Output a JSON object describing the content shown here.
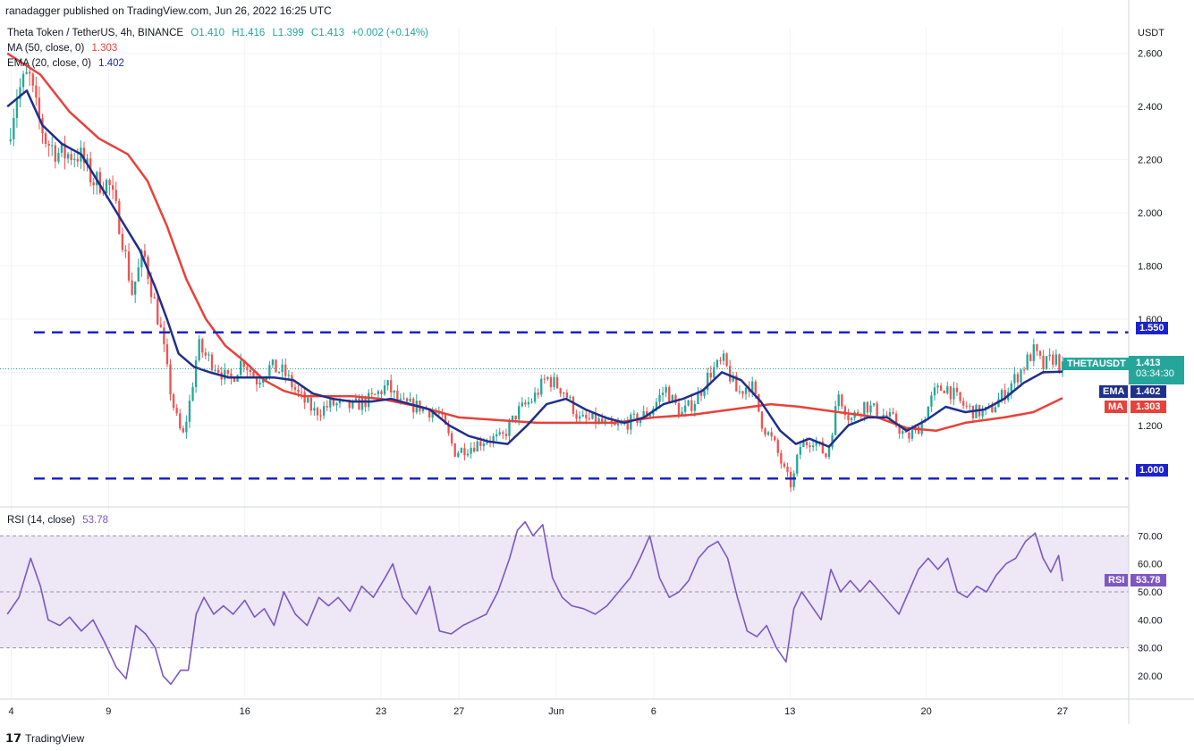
{
  "header": {
    "published": "ranadagger published on TradingView.com, Jun 26, 2022 16:25 UTC"
  },
  "symbol_line": {
    "title": "Theta Token / TetherUS, 4h, BINANCE",
    "open": "O1.410",
    "high": "H1.416",
    "low": "L1.399",
    "close": "C1.413",
    "change": "+0.002 (+0.14%)"
  },
  "ma_legend": {
    "label": "MA (50, close, 0)",
    "value": "1.303"
  },
  "ema_legend": {
    "label": "EMA (20, close, 0)",
    "value": "1.402"
  },
  "rsi_legend": {
    "label": "RSI (14, close)",
    "value": "53.78"
  },
  "price_axis": {
    "unit": "USDT"
  },
  "tags": {
    "resistance": "1.550",
    "support": "1.000",
    "symbol_name": "THETAUSDT",
    "price": "1.413",
    "countdown": "03:34:30",
    "ema_name": "EMA",
    "ema_value": "1.402",
    "ma_name": "MA",
    "ma_value": "1.303",
    "rsi_name": "RSI",
    "rsi_value": "53.78"
  },
  "footer": {
    "brand": "TradingView"
  },
  "colors": {
    "up": "#26a69a",
    "down": "#ef5350",
    "ema": "#1e2f8c",
    "ma": "#e8413a",
    "level": "#1b22d0",
    "rsi": "#7e57c2",
    "rsi_band": "#ede7f6",
    "price_tag": "#26a69a"
  },
  "chart_data": [
    {
      "type": "candlestick",
      "xlabel": "",
      "ylabel": "",
      "ylim": [
        0.9,
        2.7
      ],
      "y_ticks": [
        "1.200",
        "1.400",
        "1.600",
        "1.800",
        "2.000",
        "2.200",
        "2.400",
        "2.600"
      ],
      "x_ticks": [
        {
          "label": "4",
          "x": 0
        },
        {
          "label": "9",
          "x": 5
        },
        {
          "label": "16",
          "x": 12
        },
        {
          "label": "23",
          "x": 19
        },
        {
          "label": "27",
          "x": 23
        },
        {
          "label": "Jun",
          "x": 28
        },
        {
          "label": "6",
          "x": 33
        },
        {
          "label": "13",
          "x": 40
        },
        {
          "label": "20",
          "x": 47
        },
        {
          "label": "27",
          "x": 54
        }
      ],
      "xlim": [
        -0.3,
        57.4
      ],
      "close_path": [
        [
          -0.2,
          2.27
        ],
        [
          0.3,
          2.45
        ],
        [
          0.9,
          2.52
        ],
        [
          1.3,
          2.38
        ],
        [
          1.8,
          2.27
        ],
        [
          2.5,
          2.22
        ],
        [
          3.5,
          2.22
        ],
        [
          4.2,
          2.12
        ],
        [
          5.0,
          2.11
        ],
        [
          5.6,
          1.95
        ],
        [
          6.2,
          1.7
        ],
        [
          6.8,
          1.85
        ],
        [
          7.3,
          1.68
        ],
        [
          7.7,
          1.55
        ],
        [
          8.1,
          1.36
        ],
        [
          8.4,
          1.25
        ],
        [
          8.8,
          1.15
        ],
        [
          9.2,
          1.3
        ],
        [
          9.6,
          1.5
        ],
        [
          10.0,
          1.46
        ],
        [
          10.6,
          1.42
        ],
        [
          11.2,
          1.36
        ],
        [
          11.9,
          1.45
        ],
        [
          12.6,
          1.37
        ],
        [
          13.3,
          1.42
        ],
        [
          14.0,
          1.4
        ],
        [
          14.8,
          1.31
        ],
        [
          15.6,
          1.25
        ],
        [
          16.5,
          1.28
        ],
        [
          17.5,
          1.27
        ],
        [
          18.5,
          1.3
        ],
        [
          19.3,
          1.35
        ],
        [
          20.0,
          1.28
        ],
        [
          21.0,
          1.27
        ],
        [
          22.0,
          1.24
        ],
        [
          22.8,
          1.1
        ],
        [
          23.6,
          1.12
        ],
        [
          24.4,
          1.15
        ],
        [
          25.2,
          1.15
        ],
        [
          26.0,
          1.25
        ],
        [
          26.8,
          1.3
        ],
        [
          27.5,
          1.38
        ],
        [
          28.4,
          1.33
        ],
        [
          29.2,
          1.22
        ],
        [
          30.0,
          1.22
        ],
        [
          31.0,
          1.19
        ],
        [
          32.0,
          1.22
        ],
        [
          32.8,
          1.25
        ],
        [
          33.6,
          1.34
        ],
        [
          34.4,
          1.24
        ],
        [
          35.2,
          1.3
        ],
        [
          35.9,
          1.4
        ],
        [
          36.6,
          1.44
        ],
        [
          37.3,
          1.32
        ],
        [
          38.0,
          1.36
        ],
        [
          38.6,
          1.2
        ],
        [
          39.2,
          1.13
        ],
        [
          39.7,
          1.03
        ],
        [
          40.1,
          0.97
        ],
        [
          40.5,
          1.12
        ],
        [
          41.2,
          1.15
        ],
        [
          41.9,
          1.08
        ],
        [
          42.5,
          1.32
        ],
        [
          43.1,
          1.22
        ],
        [
          43.8,
          1.28
        ],
        [
          44.5,
          1.25
        ],
        [
          45.3,
          1.22
        ],
        [
          46.0,
          1.15
        ],
        [
          46.7,
          1.2
        ],
        [
          47.4,
          1.32
        ],
        [
          48.0,
          1.35
        ],
        [
          48.8,
          1.28
        ],
        [
          49.5,
          1.25
        ],
        [
          50.2,
          1.25
        ],
        [
          51.0,
          1.32
        ],
        [
          51.8,
          1.4
        ],
        [
          52.5,
          1.48
        ],
        [
          53.0,
          1.42
        ],
        [
          53.6,
          1.46
        ],
        [
          54.0,
          1.413
        ]
      ],
      "ema_path": [
        [
          -0.2,
          2.4
        ],
        [
          0.8,
          2.46
        ],
        [
          1.6,
          2.33
        ],
        [
          2.6,
          2.26
        ],
        [
          3.6,
          2.22
        ],
        [
          4.6,
          2.1
        ],
        [
          5.6,
          1.98
        ],
        [
          6.6,
          1.86
        ],
        [
          7.4,
          1.72
        ],
        [
          8.0,
          1.6
        ],
        [
          8.6,
          1.47
        ],
        [
          9.4,
          1.42
        ],
        [
          10.2,
          1.4
        ],
        [
          11.2,
          1.38
        ],
        [
          12.5,
          1.38
        ],
        [
          13.5,
          1.38
        ],
        [
          14.5,
          1.37
        ],
        [
          15.5,
          1.32
        ],
        [
          16.5,
          1.3
        ],
        [
          17.5,
          1.29
        ],
        [
          18.5,
          1.29
        ],
        [
          19.5,
          1.3
        ],
        [
          20.5,
          1.28
        ],
        [
          21.5,
          1.26
        ],
        [
          22.5,
          1.2
        ],
        [
          23.5,
          1.16
        ],
        [
          24.5,
          1.14
        ],
        [
          25.5,
          1.13
        ],
        [
          26.5,
          1.2
        ],
        [
          27.5,
          1.28
        ],
        [
          28.5,
          1.3
        ],
        [
          29.5,
          1.26
        ],
        [
          30.5,
          1.23
        ],
        [
          31.5,
          1.21
        ],
        [
          32.5,
          1.23
        ],
        [
          33.5,
          1.28
        ],
        [
          34.5,
          1.3
        ],
        [
          35.5,
          1.33
        ],
        [
          36.5,
          1.4
        ],
        [
          37.5,
          1.37
        ],
        [
          38.5,
          1.29
        ],
        [
          39.5,
          1.18
        ],
        [
          40.3,
          1.13
        ],
        [
          41.0,
          1.15
        ],
        [
          42.0,
          1.12
        ],
        [
          43.0,
          1.2
        ],
        [
          44.0,
          1.23
        ],
        [
          45.0,
          1.23
        ],
        [
          46.0,
          1.18
        ],
        [
          47.0,
          1.22
        ],
        [
          48.0,
          1.27
        ],
        [
          49.0,
          1.25
        ],
        [
          50.0,
          1.26
        ],
        [
          51.0,
          1.3
        ],
        [
          52.0,
          1.36
        ],
        [
          53.0,
          1.4
        ],
        [
          54.0,
          1.402
        ]
      ],
      "ma_path": [
        [
          -0.2,
          2.6
        ],
        [
          1.5,
          2.52
        ],
        [
          3.0,
          2.38
        ],
        [
          4.5,
          2.28
        ],
        [
          6.0,
          2.22
        ],
        [
          7.0,
          2.12
        ],
        [
          8.0,
          1.95
        ],
        [
          9.0,
          1.75
        ],
        [
          10.0,
          1.6
        ],
        [
          11.0,
          1.5
        ],
        [
          12.0,
          1.44
        ],
        [
          13.0,
          1.37
        ],
        [
          14.0,
          1.33
        ],
        [
          15.0,
          1.31
        ],
        [
          16.0,
          1.31
        ],
        [
          17.5,
          1.31
        ],
        [
          19.0,
          1.3
        ],
        [
          21.0,
          1.27
        ],
        [
          23.0,
          1.23
        ],
        [
          25.0,
          1.22
        ],
        [
          27.0,
          1.21
        ],
        [
          29.0,
          1.21
        ],
        [
          31.0,
          1.21
        ],
        [
          33.0,
          1.23
        ],
        [
          35.0,
          1.24
        ],
        [
          37.0,
          1.26
        ],
        [
          39.0,
          1.28
        ],
        [
          40.5,
          1.27
        ],
        [
          42.5,
          1.25
        ],
        [
          44.5,
          1.23
        ],
        [
          46.0,
          1.19
        ],
        [
          47.5,
          1.18
        ],
        [
          49.0,
          1.21
        ],
        [
          51.0,
          1.23
        ],
        [
          52.5,
          1.25
        ],
        [
          54.0,
          1.303
        ]
      ],
      "levels": [
        {
          "value": 1.55,
          "tag": "resistance"
        },
        {
          "value": 1.0,
          "tag": "support"
        }
      ]
    },
    {
      "type": "line",
      "title": "RSI (14, close)",
      "ylim": [
        12,
        80
      ],
      "y_ticks": [
        "20.00",
        "30.00",
        "40.00",
        "50.00",
        "60.00",
        "70.00"
      ],
      "band": [
        30,
        70
      ],
      "midline": 50,
      "series": [
        {
          "name": "RSI",
          "points": [
            [
              -0.2,
              42
            ],
            [
              0.4,
              48
            ],
            [
              1.0,
              62
            ],
            [
              1.5,
              52
            ],
            [
              1.9,
              40
            ],
            [
              2.5,
              38
            ],
            [
              3.0,
              41
            ],
            [
              3.6,
              36
            ],
            [
              4.2,
              40
            ],
            [
              4.8,
              32
            ],
            [
              5.4,
              23
            ],
            [
              5.9,
              19
            ],
            [
              6.4,
              38
            ],
            [
              6.9,
              35
            ],
            [
              7.4,
              30
            ],
            [
              7.8,
              20
            ],
            [
              8.2,
              17
            ],
            [
              8.7,
              22
            ],
            [
              9.1,
              22
            ],
            [
              9.5,
              42
            ],
            [
              9.9,
              48
            ],
            [
              10.4,
              42
            ],
            [
              10.9,
              45
            ],
            [
              11.4,
              42
            ],
            [
              12.0,
              47
            ],
            [
              12.5,
              41
            ],
            [
              13.0,
              44
            ],
            [
              13.5,
              38
            ],
            [
              14.0,
              50
            ],
            [
              14.6,
              42
            ],
            [
              15.2,
              38
            ],
            [
              15.8,
              48
            ],
            [
              16.3,
              45
            ],
            [
              16.8,
              48
            ],
            [
              17.4,
              43
            ],
            [
              18.0,
              52
            ],
            [
              18.6,
              48
            ],
            [
              19.2,
              55
            ],
            [
              19.6,
              60
            ],
            [
              20.1,
              48
            ],
            [
              20.8,
              42
            ],
            [
              21.5,
              52
            ],
            [
              22.0,
              36
            ],
            [
              22.6,
              35
            ],
            [
              23.2,
              38
            ],
            [
              23.8,
              40
            ],
            [
              24.4,
              42
            ],
            [
              25.0,
              50
            ],
            [
              25.6,
              62
            ],
            [
              26.0,
              72
            ],
            [
              26.4,
              75
            ],
            [
              26.8,
              70
            ],
            [
              27.3,
              74
            ],
            [
              27.8,
              55
            ],
            [
              28.3,
              48
            ],
            [
              28.8,
              45
            ],
            [
              29.4,
              44
            ],
            [
              30.0,
              42
            ],
            [
              30.6,
              45
            ],
            [
              31.2,
              50
            ],
            [
              31.8,
              55
            ],
            [
              32.3,
              62
            ],
            [
              32.8,
              70
            ],
            [
              33.3,
              55
            ],
            [
              33.8,
              48
            ],
            [
              34.3,
              50
            ],
            [
              34.8,
              54
            ],
            [
              35.3,
              62
            ],
            [
              35.8,
              66
            ],
            [
              36.3,
              68
            ],
            [
              36.8,
              62
            ],
            [
              37.3,
              48
            ],
            [
              37.8,
              36
            ],
            [
              38.3,
              34
            ],
            [
              38.8,
              38
            ],
            [
              39.3,
              30
            ],
            [
              39.8,
              25
            ],
            [
              40.2,
              44
            ],
            [
              40.6,
              50
            ],
            [
              41.1,
              45
            ],
            [
              41.6,
              40
            ],
            [
              42.1,
              58
            ],
            [
              42.6,
              50
            ],
            [
              43.1,
              54
            ],
            [
              43.6,
              50
            ],
            [
              44.1,
              54
            ],
            [
              44.6,
              50
            ],
            [
              45.1,
              46
            ],
            [
              45.6,
              42
            ],
            [
              46.1,
              50
            ],
            [
              46.6,
              58
            ],
            [
              47.1,
              62
            ],
            [
              47.6,
              58
            ],
            [
              48.1,
              62
            ],
            [
              48.6,
              50
            ],
            [
              49.1,
              48
            ],
            [
              49.6,
              52
            ],
            [
              50.1,
              50
            ],
            [
              50.6,
              56
            ],
            [
              51.1,
              60
            ],
            [
              51.6,
              62
            ],
            [
              52.1,
              68
            ],
            [
              52.6,
              71
            ],
            [
              53.0,
              62
            ],
            [
              53.4,
              57
            ],
            [
              53.8,
              63
            ],
            [
              54.0,
              53.78
            ]
          ]
        }
      ]
    }
  ]
}
